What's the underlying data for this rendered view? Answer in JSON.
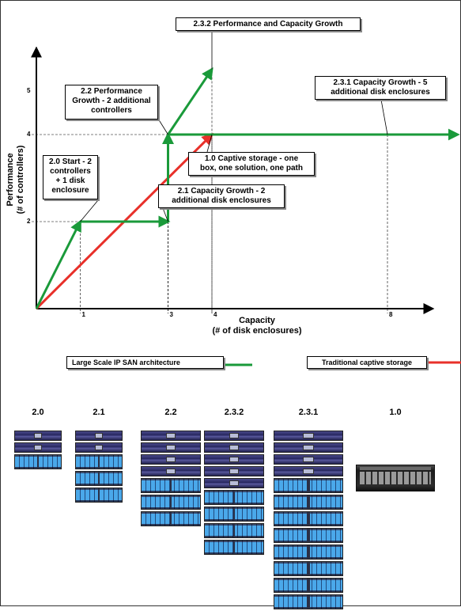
{
  "chart_data": {
    "type": "line",
    "xlabel": "Capacity\n(# of disk enclosures)",
    "ylabel": "Performance\n(# of controllers)",
    "x_ticks": [
      "1",
      "3",
      "4",
      "8"
    ],
    "y_ticks": [
      "2",
      "4",
      "5"
    ],
    "series": [
      {
        "name": "Large Scale IP SAN architecture",
        "color": "#1a9a3a",
        "points": [
          [
            0,
            0
          ],
          [
            1,
            2
          ],
          [
            3,
            2
          ],
          [
            3,
            4
          ],
          [
            4,
            5.5
          ]
        ],
        "branch": [
          [
            3,
            4
          ],
          [
            9.6,
            4
          ]
        ]
      },
      {
        "name": "Traditional captive storage",
        "color": "#e8302a",
        "points": [
          [
            0,
            0
          ],
          [
            4,
            4
          ]
        ]
      }
    ],
    "annotations": [
      {
        "id": "2.0",
        "text": "2.0 Start - 2\ncontrollers\n+ 1 disk\nenclosure",
        "anchor": [
          1,
          2
        ]
      },
      {
        "id": "2.1",
        "text": "2.1 Capacity Growth - 2\nadditional disk enclosures",
        "anchor": [
          3,
          2
        ]
      },
      {
        "id": "2.2",
        "text": "2.2 Performance\nGrowth - 2 additional\ncontrollers",
        "anchor": [
          3,
          4
        ]
      },
      {
        "id": "1.0",
        "text": "1.0 Captive storage - one\nbox, one solution, one path",
        "anchor": [
          4,
          4
        ]
      },
      {
        "id": "2.3.2",
        "text": "2.3.2 Performance and Capacity Growth",
        "anchor": [
          4,
          5.5
        ]
      },
      {
        "id": "2.3.1",
        "text": "2.3.1 Capacity Growth - 5\nadditional disk enclosures",
        "anchor": [
          8,
          4
        ]
      }
    ]
  },
  "legend": [
    {
      "label": "Large Scale IP SAN architecture",
      "color": "#1a9a3a"
    },
    {
      "label": "Traditional captive storage",
      "color": "#e8302a"
    }
  ],
  "stacks": [
    {
      "label": "2.0",
      "controllers": 2,
      "enclosures": 1
    },
    {
      "label": "2.1",
      "controllers": 2,
      "enclosures": 3
    },
    {
      "label": "2.2",
      "controllers": 4,
      "enclosures": 3
    },
    {
      "label": "2.3.2",
      "controllers": 5,
      "enclosures": 4
    },
    {
      "label": "2.3.1",
      "controllers": 4,
      "enclosures": 8
    },
    {
      "label": "1.0",
      "captive": true
    }
  ]
}
